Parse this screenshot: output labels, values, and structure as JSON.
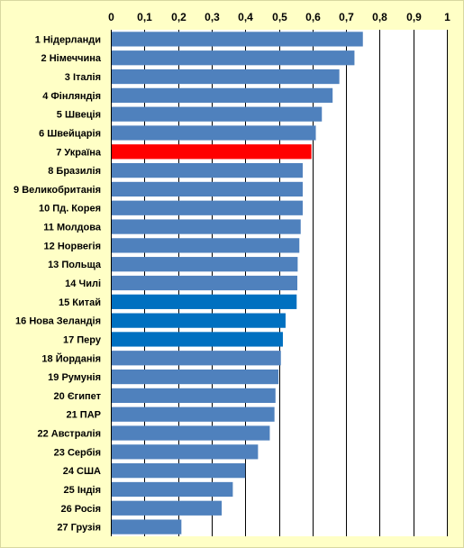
{
  "chart_data": {
    "type": "bar",
    "orientation": "horizontal",
    "categories": [
      "1 Нідерланди",
      "2 Німеччина",
      "3 Італія",
      "4 Фінляндія",
      "5 Швеція",
      "6 Швейцарія",
      "7 Україна",
      "8 Бразилія",
      "9 Великобританія",
      "10 Пд. Корея",
      "11 Молдова",
      "12 Норвегія",
      "13 Польща",
      "14 Чилі",
      "15 Китай",
      "16 Нова Зеландія",
      "17 Перу",
      "18 Йорданія",
      "19 Румунія",
      "20 Єгипет",
      "21 ПАР",
      "22 Австралія",
      "23 Сербія",
      "24 США",
      "25 Індія",
      "26 Росія",
      "27 Грузія"
    ],
    "values": [
      0.75,
      0.725,
      0.68,
      0.66,
      0.628,
      0.61,
      0.597,
      0.571,
      0.571,
      0.571,
      0.565,
      0.561,
      0.556,
      0.555,
      0.553,
      0.52,
      0.512,
      0.506,
      0.499,
      0.49,
      0.487,
      0.473,
      0.438,
      0.4,
      0.363,
      0.33,
      0.21
    ],
    "bar_colors": [
      "#4f81bd",
      "#4f81bd",
      "#4f81bd",
      "#4f81bd",
      "#4f81bd",
      "#4f81bd",
      "#ff0000",
      "#4f81bd",
      "#4f81bd",
      "#4f81bd",
      "#4f81bd",
      "#4f81bd",
      "#4f81bd",
      "#4f81bd",
      "#0070c0",
      "#0070c0",
      "#0070c0",
      "#4f81bd",
      "#4f81bd",
      "#4f81bd",
      "#4f81bd",
      "#4f81bd",
      "#4f81bd",
      "#4f81bd",
      "#4f81bd",
      "#4f81bd",
      "#4f81bd"
    ],
    "xlim": [
      0,
      1
    ],
    "x_ticks": [
      0,
      0.1,
      0.2,
      0.3,
      0.4,
      0.5,
      0.6,
      0.7,
      0.8,
      0.9,
      1
    ],
    "x_tick_labels": [
      "0",
      "0,1",
      "0,2",
      "0,3",
      "0,4",
      "0,5",
      "0,6",
      "0,7",
      "0,8",
      "0,9",
      "1"
    ],
    "x_axis_position": "top",
    "grid": true,
    "legend": "none",
    "title": "",
    "xlabel": "",
    "ylabel": "",
    "colors": {
      "background": "#ffffc6",
      "plot_background": "#ffffff",
      "gridline": "#000000",
      "bar_default": "#4f81bd",
      "bar_highlight": "#ff0000",
      "bar_group": "#0070c0"
    }
  }
}
